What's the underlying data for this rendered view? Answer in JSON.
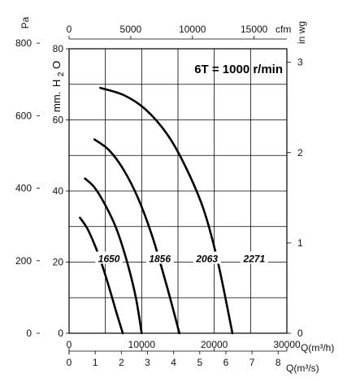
{
  "chart_data": {
    "type": "line",
    "title": "6T = 1000 r/min",
    "xlabel_bottom": "Q(m³/h)",
    "xlabel_bottom2": "Q(m³/s)",
    "xlabel_top": "cfm",
    "ylabel_left_pa": "Pa",
    "ylabel_left_mm": "mm.",
    "ylabel_mm_sub": "H",
    "ylabel_mm_sub2": "2",
    "ylabel_mm_sub3": "O",
    "ylabel_right": "in wg",
    "xlim": [
      0,
      30000
    ],
    "ylim": [
      0,
      80
    ],
    "x_ticks_m3h": [
      "0",
      "10000",
      "20000",
      "30000"
    ],
    "x_ticks_m3s": [
      "0",
      "1",
      "2",
      "3",
      "4",
      "5",
      "6",
      "7",
      "8"
    ],
    "x_ticks_cfm": [
      "0",
      "5000",
      "10000",
      "15000"
    ],
    "y_ticks_mm": [
      "0",
      "20",
      "40",
      "60",
      "80"
    ],
    "y_ticks_pa": [
      "0",
      "200",
      "400",
      "600",
      "800"
    ],
    "y_ticks_inwg": [
      "0",
      "1",
      "2",
      "3"
    ],
    "series": [
      {
        "name": "1650",
        "x": [
          1500,
          2500,
          3500,
          4500,
          5500,
          6500,
          7400
        ],
        "y": [
          32.5,
          29.5,
          25,
          19.5,
          13,
          6,
          0
        ]
      },
      {
        "name": "1856",
        "x": [
          2200,
          3500,
          5000,
          6500,
          8000,
          9200,
          10000
        ],
        "y": [
          43.5,
          41,
          36,
          29.5,
          20,
          10,
          0
        ]
      },
      {
        "name": "2063",
        "x": [
          3500,
          5500,
          7500,
          9500,
          11500,
          13500,
          15200
        ],
        "y": [
          54.5,
          51.5,
          46,
          38,
          27,
          13,
          0
        ]
      },
      {
        "name": "2271",
        "x": [
          4300,
          7500,
          10500,
          13500,
          16000,
          18500,
          20500,
          22500
        ],
        "y": [
          69,
          67,
          63,
          56,
          47,
          35,
          20,
          0
        ]
      }
    ]
  }
}
